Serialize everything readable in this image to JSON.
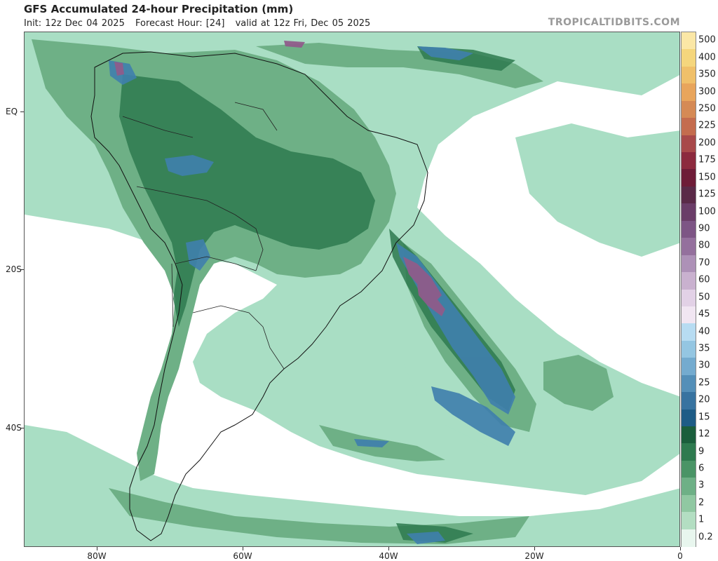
{
  "header": {
    "title": "GFS Accumulated 24-hour Precipitation (mm)",
    "init": "Init: 12z Dec 04 2025",
    "forecast_hour": "Forecast Hour: [24]",
    "valid": "valid at 12z Fri, Dec 05 2025",
    "brand": "TROPICALTIDBITS.COM"
  },
  "axes": {
    "lat_labels": [
      "EQ",
      "20S",
      "40S"
    ],
    "lon_labels": [
      "80W",
      "60W",
      "40W",
      "20W",
      "0"
    ]
  },
  "colorbar": {
    "labels": [
      "500",
      "400",
      "350",
      "300",
      "250",
      "225",
      "200",
      "175",
      "150",
      "125",
      "100",
      "90",
      "80",
      "70",
      "60",
      "50",
      "45",
      "40",
      "35",
      "30",
      "25",
      "20",
      "15",
      "12",
      "9",
      "6",
      "3",
      "2",
      "1",
      "0.2"
    ],
    "colors": [
      "#fbe7a6",
      "#f5d67d",
      "#f0c06a",
      "#e8a55c",
      "#d58a55",
      "#c46c4e",
      "#a8494a",
      "#8c2a3e",
      "#6e1c38",
      "#5a2a48",
      "#6a3d68",
      "#7d5585",
      "#94709d",
      "#ad91b7",
      "#c9b1cf",
      "#e2d1e6",
      "#f1e6f2",
      "#b7dcf2",
      "#94c6e2",
      "#74abcf",
      "#548fb8",
      "#3873a0",
      "#1e5c86",
      "#1b5e3c",
      "#2e7a4f",
      "#4a9466",
      "#6eb086",
      "#90c8a2",
      "#b3dec2",
      "#e8f6ee"
    ]
  },
  "map": {
    "ocean_color": "#ffffff",
    "light_precip": "#a9dec4",
    "mid_precip": "#6eb086",
    "heavy_precip": "#2e7a4f",
    "blue_precip": "#3f7fad",
    "purple_precip": "#8f5c8a"
  }
}
